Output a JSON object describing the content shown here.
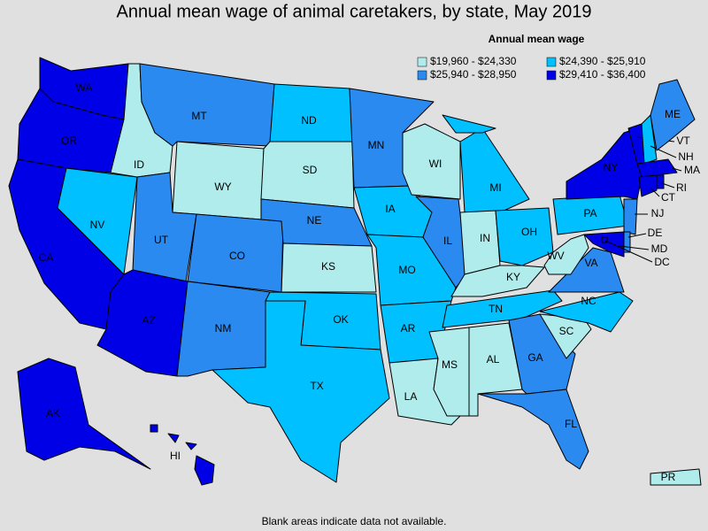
{
  "title": "Annual mean wage of animal caretakers, by state, May 2019",
  "legend": {
    "title": "Annual mean wage",
    "bins": [
      {
        "label": "$19,960 - $24,330",
        "color": "#b0ecec"
      },
      {
        "label": "$24,390 - $25,910",
        "color": "#00c0ff"
      },
      {
        "label": "$25,940 - $28,950",
        "color": "#2a8af0"
      },
      {
        "label": "$29,410 - $36,400",
        "color": "#0000e6"
      }
    ]
  },
  "states": [
    {
      "label": "WA",
      "bin": 3
    },
    {
      "label": "OR",
      "bin": 3
    },
    {
      "label": "CA",
      "bin": 3
    },
    {
      "label": "NV",
      "bin": 1
    },
    {
      "label": "ID",
      "bin": 0
    },
    {
      "label": "MT",
      "bin": 2
    },
    {
      "label": "WY",
      "bin": 0
    },
    {
      "label": "UT",
      "bin": 2
    },
    {
      "label": "CO",
      "bin": 2
    },
    {
      "label": "AZ",
      "bin": 3
    },
    {
      "label": "NM",
      "bin": 2
    },
    {
      "label": "ND",
      "bin": 1
    },
    {
      "label": "SD",
      "bin": 0
    },
    {
      "label": "NE",
      "bin": 2
    },
    {
      "label": "KS",
      "bin": 0
    },
    {
      "label": "OK",
      "bin": 1
    },
    {
      "label": "TX",
      "bin": 1
    },
    {
      "label": "MN",
      "bin": 2
    },
    {
      "label": "IA",
      "bin": 1
    },
    {
      "label": "MO",
      "bin": 1
    },
    {
      "label": "AR",
      "bin": 1
    },
    {
      "label": "LA",
      "bin": 0
    },
    {
      "label": "WI",
      "bin": 0
    },
    {
      "label": "IL",
      "bin": 2
    },
    {
      "label": "MI",
      "bin": 1
    },
    {
      "label": "IN",
      "bin": 0
    },
    {
      "label": "OH",
      "bin": 1
    },
    {
      "label": "KY",
      "bin": 0
    },
    {
      "label": "TN",
      "bin": 1
    },
    {
      "label": "MS",
      "bin": 0
    },
    {
      "label": "AL",
      "bin": 0
    },
    {
      "label": "GA",
      "bin": 2
    },
    {
      "label": "FL",
      "bin": 2
    },
    {
      "label": "SC",
      "bin": 0
    },
    {
      "label": "NC",
      "bin": 1
    },
    {
      "label": "VA",
      "bin": 2
    },
    {
      "label": "WV",
      "bin": 0
    },
    {
      "label": "PA",
      "bin": 1
    },
    {
      "label": "NY",
      "bin": 3
    },
    {
      "label": "NJ",
      "bin": 2
    },
    {
      "label": "DE",
      "bin": 2
    },
    {
      "label": "MD",
      "bin": 3
    },
    {
      "label": "DC",
      "bin": 3
    },
    {
      "label": "VT",
      "bin": 3
    },
    {
      "label": "NH",
      "bin": 1
    },
    {
      "label": "ME",
      "bin": 2
    },
    {
      "label": "MA",
      "bin": 3
    },
    {
      "label": "CT",
      "bin": 3
    },
    {
      "label": "RI",
      "bin": 3
    },
    {
      "label": "AK",
      "bin": 3
    },
    {
      "label": "HI",
      "bin": 3
    },
    {
      "label": "PR",
      "bin": 0
    }
  ],
  "footnote": "Blank areas indicate data not available."
}
